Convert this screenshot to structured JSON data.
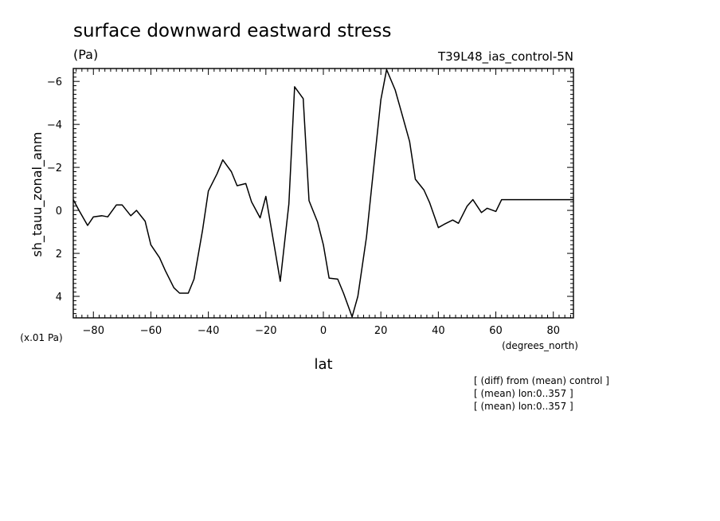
{
  "chart_data": {
    "type": "line",
    "title": "surface downward eastward stress",
    "units": "(Pa)",
    "run_label": "T39L48_ias_control-5N",
    "ylabel": "sh_tauu_zonal_anm",
    "xlabel": "lat",
    "x_units": "(degrees_north)",
    "y_scale_note": "(x.01 Pa)",
    "notes": [
      "[ (diff) from (mean) control ]",
      "[ (mean) lon:0..357 ]",
      "[ (mean) lon:0..357 ]"
    ],
    "xlim": [
      -87,
      87
    ],
    "ylim": [
      5,
      -6.6
    ],
    "y_inverted": true,
    "xticks": [
      -80,
      -60,
      -40,
      -20,
      0,
      20,
      40,
      60,
      80
    ],
    "yticks": [
      -6,
      -4,
      -2,
      0,
      2,
      4
    ],
    "series": [
      {
        "x": [
          -87,
          -85,
          -82,
          -80,
          -77,
          -75,
          -72,
          -70,
          -67,
          -65,
          -62,
          -60,
          -57,
          -55,
          -52,
          -50,
          -47,
          -45,
          -42,
          -40,
          -37,
          -35,
          -32,
          -30,
          -27,
          -25,
          -22,
          -20,
          -17,
          -15,
          -12,
          -10,
          -7,
          -5,
          -2,
          0,
          2,
          5,
          7,
          10,
          12,
          15,
          17,
          20,
          22,
          25,
          27,
          30,
          32,
          35,
          37,
          40,
          42,
          45,
          47,
          50,
          52,
          55,
          57,
          60,
          62,
          65,
          67,
          70,
          72,
          75,
          77,
          80,
          82,
          85,
          87
        ],
        "y": [
          -0.5,
          0.0,
          0.7,
          0.3,
          0.25,
          0.3,
          -0.25,
          -0.25,
          0.25,
          0.0,
          0.5,
          1.6,
          2.2,
          2.8,
          3.6,
          3.85,
          3.85,
          3.2,
          0.9,
          -0.9,
          -1.7,
          -2.35,
          -1.8,
          -1.15,
          -1.25,
          -0.4,
          0.35,
          -0.65,
          1.7,
          3.3,
          -0.3,
          -5.75,
          -5.2,
          -0.45,
          0.55,
          1.6,
          3.15,
          3.2,
          3.85,
          4.95,
          4.0,
          1.25,
          -1.35,
          -5.15,
          -6.55,
          -5.6,
          -4.65,
          -3.2,
          -1.45,
          -0.95,
          -0.35,
          0.8,
          0.65,
          0.45,
          0.6,
          -0.2,
          -0.5,
          0.1,
          -0.1,
          0.05,
          -0.5,
          -0.5,
          -0.5,
          -0.5,
          -0.5,
          -0.5,
          -0.5,
          -0.5,
          -0.5,
          -0.5,
          -0.5
        ]
      }
    ]
  }
}
